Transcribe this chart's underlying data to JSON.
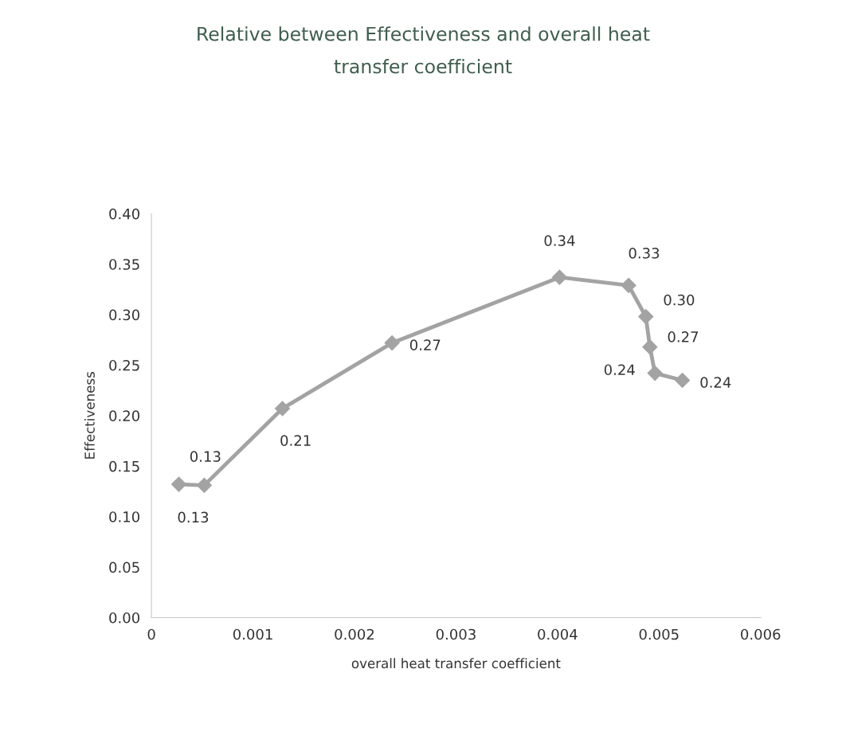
{
  "chart_data": {
    "type": "line",
    "title": "Relative between Effectiveness and overall heat transfer coefficient",
    "xlabel": "overall heat transfer coefficient",
    "ylabel": "Effectiveness",
    "x": [
      0.00027,
      0.00052,
      0.00129,
      0.00237,
      0.00402,
      0.0047,
      0.00487,
      0.00491,
      0.00496,
      0.00523
    ],
    "series": [
      {
        "color": "#a3a3a3",
        "values": [
          0.132,
          0.131,
          0.207,
          0.272,
          0.337,
          0.329,
          0.298,
          0.268,
          0.242,
          0.235
        ],
        "value_labels": [
          "0.13",
          "0.13",
          "0.21",
          "0.27",
          "0.34",
          "0.33",
          "0.30",
          "0.27",
          "0.24",
          "0.24"
        ]
      }
    ],
    "xlim": [
      0,
      0.006
    ],
    "xticks": [
      0,
      0.001,
      0.002,
      0.003,
      0.004,
      0.005,
      0.006
    ],
    "ylim": [
      0,
      0.4
    ],
    "yticks": [
      {
        "value": 0,
        "label": "0.00"
      },
      {
        "value": 0.05,
        "label": "0.05"
      },
      {
        "value": 0.1,
        "label": "0.10"
      },
      {
        "value": 0.15,
        "label": "0.15"
      },
      {
        "value": 0.2,
        "label": "0.20"
      },
      {
        "value": 0.25,
        "label": "0.25"
      },
      {
        "value": 0.3,
        "label": "0.30"
      },
      {
        "value": 0.35,
        "label": "0.35"
      },
      {
        "value": 0.4,
        "label": "0.40"
      }
    ],
    "marker": "diamond",
    "line_style": "solid",
    "grid": false,
    "legend": false
  }
}
